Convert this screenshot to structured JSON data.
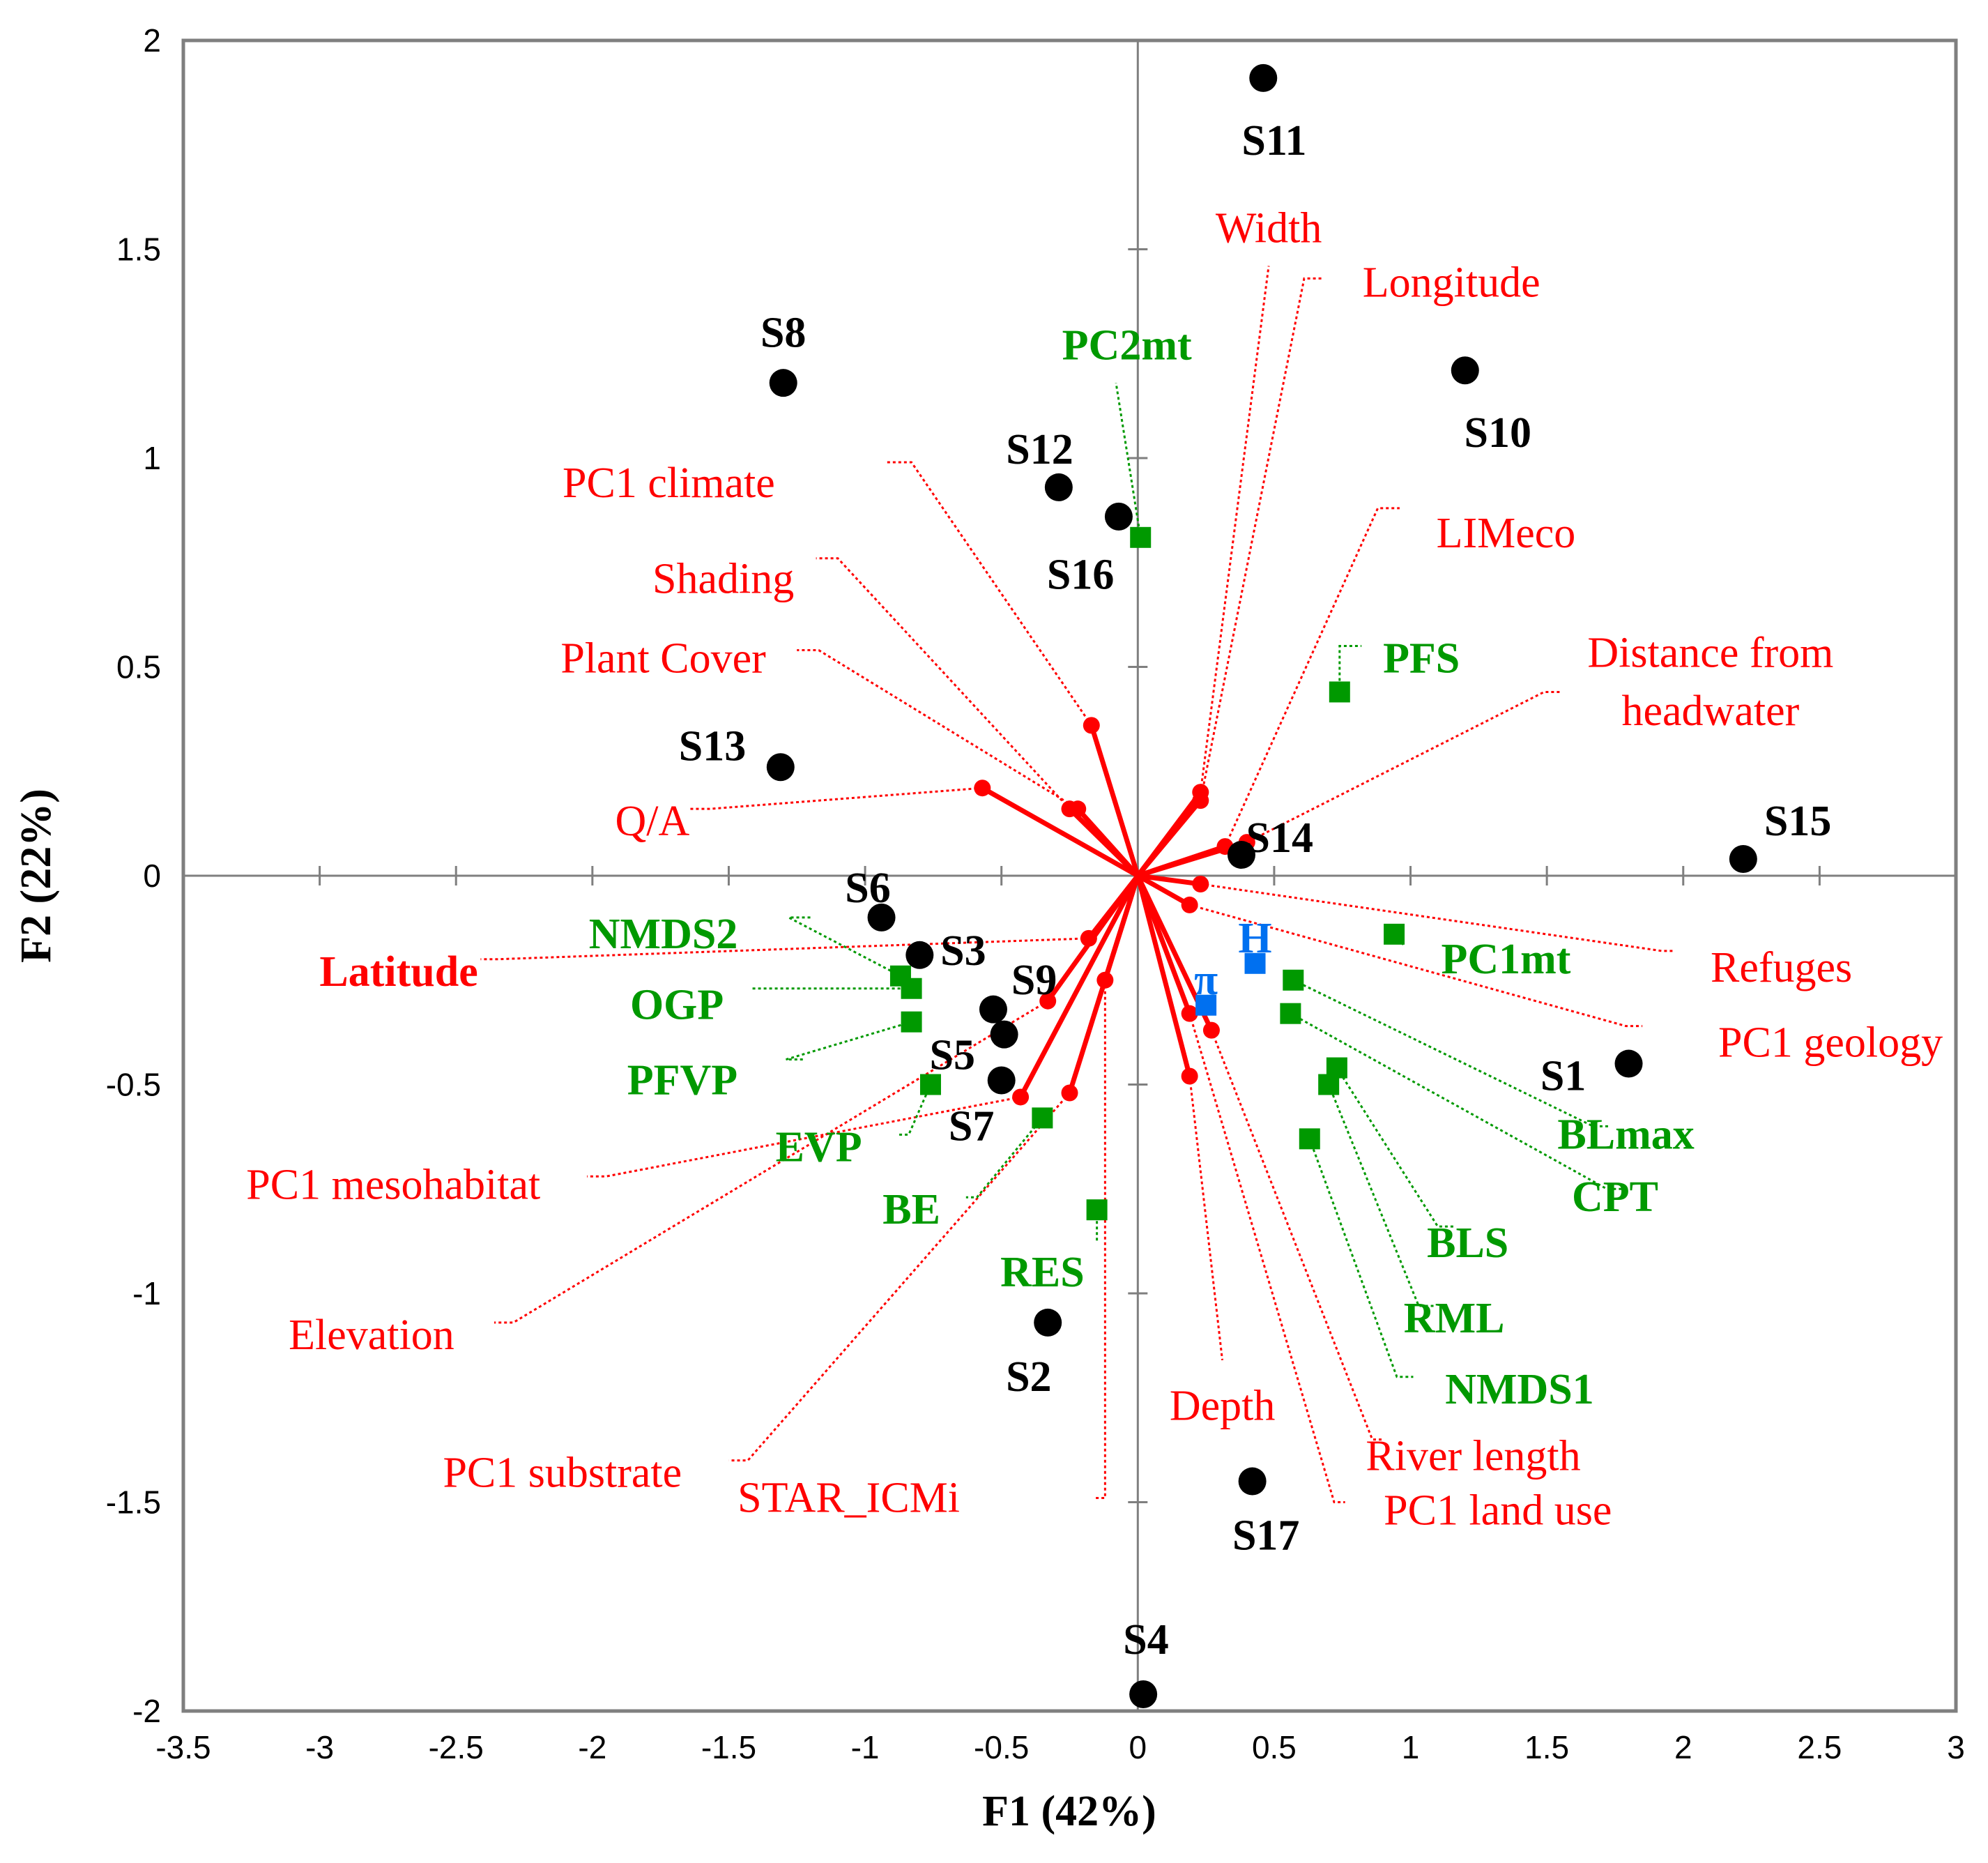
{
  "chart_data": {
    "type": "scatter",
    "title": "",
    "xlabel": "F1 (42%)",
    "ylabel": "F2 (22%)",
    "xlim": [
      -3.5,
      3
    ],
    "ylim": [
      -2,
      2
    ],
    "xticks": [
      "-3.5",
      "-3",
      "-2.5",
      "-2",
      "-1.5",
      "-1",
      "-0.5",
      "0",
      "0.5",
      "1",
      "1.5",
      "2",
      "2.5",
      "3"
    ],
    "yticks": [
      "2",
      "1.5",
      "1",
      "0.5",
      "0",
      "-0.5",
      "-1",
      "-1.5",
      "-2"
    ],
    "colors": {
      "sites": "#000000",
      "environment": "#ff0000",
      "biotic": "#009900",
      "diversity": "#0070f0",
      "frame": "#7f7f7f"
    },
    "sites": [
      {
        "label": "S1",
        "x": 1.8,
        "y": -0.45,
        "lx": 1.56,
        "ly": -0.48
      },
      {
        "label": "S2",
        "x": -0.33,
        "y": -1.07,
        "lx": -0.4,
        "ly": -1.2
      },
      {
        "label": "S3",
        "x": -0.8,
        "y": -0.19,
        "lx": -0.64,
        "ly": -0.18
      },
      {
        "label": "S4",
        "x": 0.02,
        "y": -1.96,
        "lx": 0.03,
        "ly": -1.83
      },
      {
        "label": "S5",
        "x": -0.49,
        "y": -0.38,
        "lx": -0.68,
        "ly": -0.43
      },
      {
        "label": "S6",
        "x": -0.94,
        "y": -0.1,
        "lx": -0.99,
        "ly": -0.03
      },
      {
        "label": "S7",
        "x": -0.5,
        "y": -0.49,
        "lx": -0.61,
        "ly": -0.6
      },
      {
        "label": "S8",
        "x": -1.3,
        "y": 1.18,
        "lx": -1.3,
        "ly": 1.3
      },
      {
        "label": "S9",
        "x": -0.53,
        "y": -0.32,
        "lx": -0.38,
        "ly": -0.25
      },
      {
        "label": "S10",
        "x": 1.2,
        "y": 1.21,
        "lx": 1.32,
        "ly": 1.06
      },
      {
        "label": "S11",
        "x": 0.46,
        "y": 1.91,
        "lx": 0.5,
        "ly": 1.76
      },
      {
        "label": "S12",
        "x": -0.29,
        "y": 0.93,
        "lx": -0.36,
        "ly": 1.02
      },
      {
        "label": "S13",
        "x": -1.31,
        "y": 0.26,
        "lx": -1.56,
        "ly": 0.31
      },
      {
        "label": "S14",
        "x": 0.38,
        "y": 0.05,
        "lx": 0.52,
        "ly": 0.09
      },
      {
        "label": "S15",
        "x": 2.22,
        "y": 0.04,
        "lx": 2.42,
        "ly": 0.13
      },
      {
        "label": "S16",
        "x": -0.07,
        "y": 0.86,
        "lx": -0.21,
        "ly": 0.72
      },
      {
        "label": "S17",
        "x": 0.42,
        "y": -1.45,
        "lx": 0.47,
        "ly": -1.58
      }
    ],
    "environment_vectors": [
      {
        "label": "Width",
        "x": 0.23,
        "y": 0.2,
        "lx": 0.48,
        "ly": 1.55,
        "path": [
          [
            0.48,
            1.46
          ]
        ]
      },
      {
        "label": "Longitude",
        "x": 0.23,
        "y": 0.18,
        "lx": 1.15,
        "ly": 1.42,
        "path": [
          [
            0.61,
            1.43
          ],
          [
            0.68,
            1.43
          ]
        ]
      },
      {
        "label": "LIMeco",
        "x": 0.32,
        "y": 0.07,
        "lx": 1.35,
        "ly": 0.82,
        "path": [
          [
            0.88,
            0.88
          ],
          [
            0.96,
            0.88
          ]
        ]
      },
      {
        "label": "Distance from headwater",
        "x": 0.4,
        "y": 0.08,
        "lx": 2.1,
        "ly": 0.49,
        "path": [
          [
            1.49,
            0.44
          ],
          [
            1.55,
            0.44
          ]
        ]
      },
      {
        "label": "PC1 climate",
        "x": -0.17,
        "y": 0.36,
        "lx": -1.72,
        "ly": 0.94,
        "path": [
          [
            -0.83,
            0.99
          ],
          [
            -0.92,
            0.99
          ]
        ]
      },
      {
        "label": "Shading",
        "x": -0.25,
        "y": 0.16,
        "lx": -1.52,
        "ly": 0.71,
        "path": [
          [
            -1.1,
            0.76
          ],
          [
            -1.18,
            0.76
          ]
        ]
      },
      {
        "label": "Plant Cover",
        "x": -0.22,
        "y": 0.16,
        "lx": -1.74,
        "ly": 0.52,
        "path": [
          [
            -1.17,
            0.54
          ],
          [
            -1.25,
            0.54
          ]
        ]
      },
      {
        "label": "Q/A",
        "x": -0.57,
        "y": 0.21,
        "lx": -1.78,
        "ly": 0.13,
        "path": [
          [
            -1.57,
            0.16
          ],
          [
            -1.65,
            0.16
          ]
        ]
      },
      {
        "label": "Refuges",
        "x": 0.23,
        "y": -0.02,
        "lx": 2.36,
        "ly": -0.22,
        "path": [
          [
            1.92,
            -0.18
          ],
          [
            1.97,
            -0.18
          ]
        ]
      },
      {
        "label": "PC1 geology",
        "x": 0.19,
        "y": -0.07,
        "lx": 2.54,
        "ly": -0.4,
        "path": [
          [
            1.79,
            -0.36
          ],
          [
            1.85,
            -0.36
          ]
        ]
      },
      {
        "label": "Latitude",
        "x": -0.18,
        "y": -0.15,
        "lx": -2.71,
        "ly": -0.23,
        "bold": true,
        "path": [
          [
            -2.35,
            -0.2
          ],
          [
            -2.41,
            -0.2
          ]
        ]
      },
      {
        "label": "PC1 mesohabitat",
        "x": -0.43,
        "y": -0.53,
        "lx": -2.73,
        "ly": -0.74,
        "path": [
          [
            -1.95,
            -0.72
          ],
          [
            -2.02,
            -0.72
          ]
        ]
      },
      {
        "label": "Elevation",
        "x": -0.33,
        "y": -0.3,
        "lx": -2.81,
        "ly": -1.1,
        "path": [
          [
            -2.29,
            -1.07
          ],
          [
            -2.36,
            -1.07
          ]
        ]
      },
      {
        "label": "PC1 substrate",
        "x": -0.25,
        "y": -0.52,
        "lx": -2.11,
        "ly": -1.43,
        "path": [
          [
            -1.43,
            -1.4
          ],
          [
            -1.5,
            -1.4
          ]
        ]
      },
      {
        "label": "STAR_ICMi",
        "x": -0.12,
        "y": -0.25,
        "lx": -1.06,
        "ly": -1.49,
        "path": [
          [
            -0.12,
            -1.49
          ],
          [
            -0.16,
            -1.49
          ]
        ]
      },
      {
        "label": "Depth",
        "x": 0.19,
        "y": -0.48,
        "lx": 0.31,
        "ly": -1.27,
        "path": [
          [
            0.31,
            -1.16
          ]
        ]
      },
      {
        "label": "River length",
        "x": 0.27,
        "y": -0.37,
        "lx": 1.23,
        "ly": -1.39,
        "path": [
          [
            0.86,
            -1.35
          ],
          [
            0.9,
            -1.35
          ]
        ]
      },
      {
        "label": "PC1 land use",
        "x": 0.19,
        "y": -0.33,
        "lx": 1.32,
        "ly": -1.52,
        "path": [
          [
            0.72,
            -1.5
          ],
          [
            0.76,
            -1.5
          ]
        ]
      }
    ],
    "biotic_points": [
      {
        "label": "PC2mt",
        "x": 0.01,
        "y": 0.81,
        "lx": -0.04,
        "ly": 1.27,
        "path": [
          [
            -0.08,
            1.18
          ]
        ]
      },
      {
        "label": "PFS",
        "x": 0.74,
        "y": 0.44,
        "lx": 1.04,
        "ly": 0.52,
        "path": [
          [
            0.74,
            0.55
          ],
          [
            0.82,
            0.55
          ]
        ]
      },
      {
        "label": "PC1mt",
        "x": 0.94,
        "y": -0.14,
        "lx": 1.35,
        "ly": -0.2,
        "path": [
          [
            0.98,
            -0.17
          ]
        ]
      },
      {
        "label": "NMDS2",
        "x": -0.87,
        "y": -0.24,
        "lx": -1.74,
        "ly": -0.14,
        "path": [
          [
            -1.28,
            -0.1
          ],
          [
            -1.2,
            -0.1
          ]
        ]
      },
      {
        "label": "OGP",
        "x": -0.83,
        "y": -0.27,
        "lx": -1.69,
        "ly": -0.31,
        "path": [
          [
            -1.42,
            -0.27
          ]
        ]
      },
      {
        "label": "PFVP",
        "x": -0.83,
        "y": -0.35,
        "lx": -1.67,
        "ly": -0.49,
        "path": [
          [
            -1.29,
            -0.44
          ],
          [
            -1.22,
            -0.44
          ]
        ]
      },
      {
        "label": "EVP",
        "x": -0.76,
        "y": -0.5,
        "lx": -1.17,
        "ly": -0.65,
        "path": [
          [
            -0.84,
            -0.62
          ],
          [
            -0.88,
            -0.62
          ]
        ]
      },
      {
        "label": "BE",
        "x": -0.35,
        "y": -0.58,
        "lx": -0.83,
        "ly": -0.8,
        "path": [
          [
            -0.59,
            -0.77
          ],
          [
            -0.63,
            -0.77
          ]
        ]
      },
      {
        "label": "RES",
        "x": -0.15,
        "y": -0.8,
        "lx": -0.35,
        "ly": -0.95,
        "path": [
          [
            -0.15,
            -0.88
          ]
        ]
      },
      {
        "label": "BLmax",
        "x": 0.57,
        "y": -0.25,
        "lx": 1.79,
        "ly": -0.62,
        "path": [
          [
            1.67,
            -0.6
          ],
          [
            1.73,
            -0.6
          ]
        ]
      },
      {
        "label": "CPT",
        "x": 0.56,
        "y": -0.33,
        "lx": 1.75,
        "ly": -0.77,
        "path": [
          [
            1.72,
            -0.75
          ],
          [
            1.78,
            -0.75
          ]
        ]
      },
      {
        "label": "BLS",
        "x": 0.73,
        "y": -0.46,
        "lx": 1.21,
        "ly": -0.88,
        "path": [
          [
            1.1,
            -0.84
          ],
          [
            1.16,
            -0.84
          ]
        ]
      },
      {
        "label": "RML",
        "x": 0.7,
        "y": -0.5,
        "lx": 1.16,
        "ly": -1.06,
        "path": [
          [
            1.03,
            -1.03
          ],
          [
            1.09,
            -1.03
          ]
        ]
      },
      {
        "label": "NMDS1",
        "x": 0.63,
        "y": -0.63,
        "lx": 1.4,
        "ly": -1.23,
        "path": [
          [
            0.95,
            -1.2
          ],
          [
            1.01,
            -1.2
          ]
        ]
      }
    ],
    "diversity_points": [
      {
        "label": "H",
        "x": 0.43,
        "y": -0.21,
        "lx": 0.43,
        "ly": -0.15
      },
      {
        "label": "π",
        "x": 0.25,
        "y": -0.31,
        "lx": 0.25,
        "ly": -0.25
      }
    ]
  }
}
